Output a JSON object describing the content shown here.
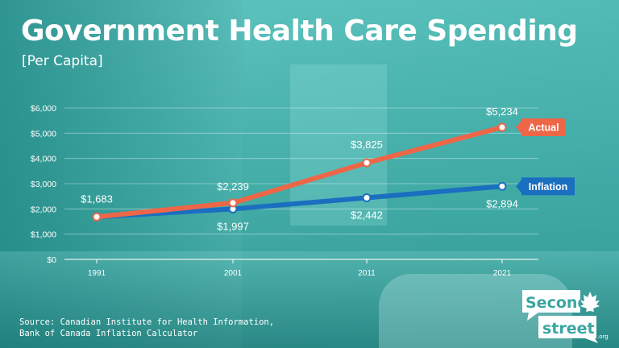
{
  "title": "Government Health Care Spending",
  "subtitle": "[Per Capita]",
  "source": [
    "Source: Canadian Institute for Health Information,",
    "Bank of Canada Inflation Calculator"
  ],
  "logo": {
    "line1": "Second",
    "line2": "street",
    "suffix": ".org"
  },
  "colors": {
    "actual": "#ee6648",
    "inflation": "#1a6fc0",
    "text": "#ffffff"
  },
  "chart_data": {
    "type": "line",
    "title": "Government Health Care Spending",
    "subtitle": "[Per Capita]",
    "x": [
      "1991",
      "2001",
      "2011",
      "2021"
    ],
    "y_ticks": [
      "$0",
      "$1,000",
      "$2,000",
      "$3,000",
      "$4,000",
      "$5,000",
      "$6,000"
    ],
    "ylim": [
      0,
      6000
    ],
    "grid": true,
    "series": [
      {
        "name": "Actual",
        "values": [
          1683,
          2239,
          3825,
          5234
        ],
        "labels": [
          "$1,683",
          "$2,239",
          "$3,825",
          "$5,234"
        ]
      },
      {
        "name": "Inflation",
        "values": [
          1683,
          1997,
          2442,
          2894
        ],
        "labels": [
          "",
          "$1,997",
          "$2,442",
          "$2,894"
        ]
      }
    ]
  }
}
